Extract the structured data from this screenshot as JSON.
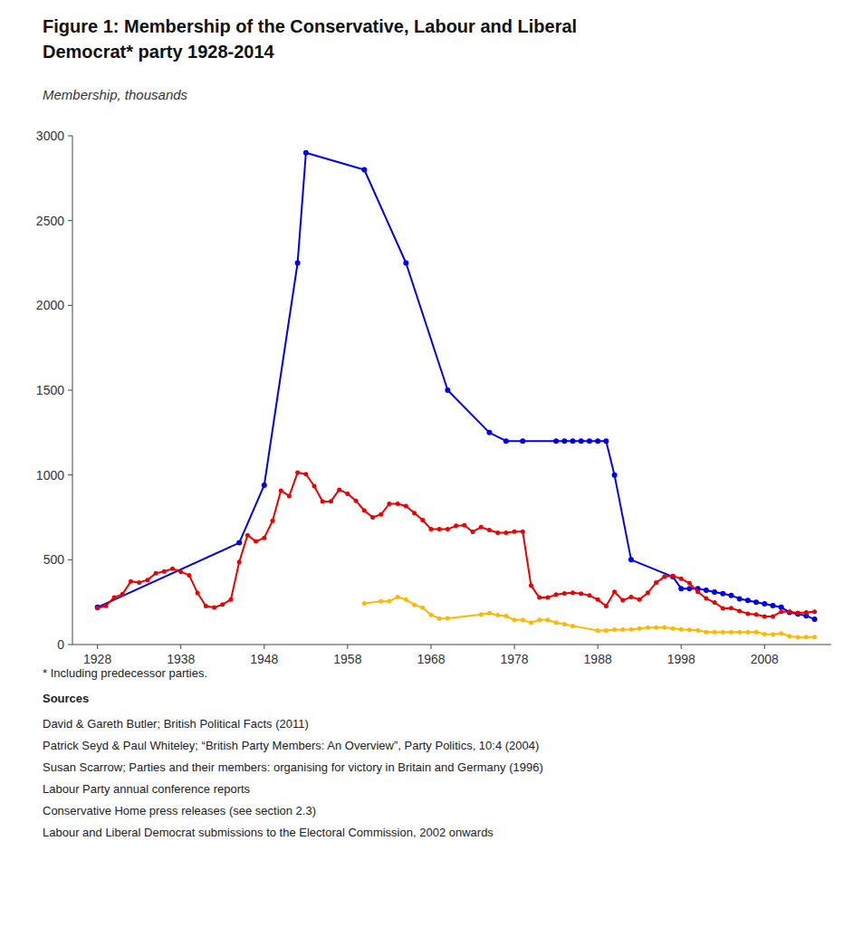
{
  "chart_data": {
    "type": "line",
    "title": [
      "Figure 1: Membership of the Conservative, Labour and Liberal",
      "Democrat* party 1928-2014"
    ],
    "subtitle": "Membership, thousands",
    "annotations": [
      "* Including predecessor parties.",
      "Sources",
      "David & Gareth Butler; British Political Facts (2011)",
      "Patrick Seyd & Paul Whiteley; “British Party Members: An Overview”, Party Politics, 10:4 (2004)",
      "Susan Scarrow; Parties and their members: organising for victory in Britain and Germany (1996)",
      "Labour Party annual conference reports",
      "Conservative Home press releases (see section 2.3)",
      "Labour and Liberal Democrat submissions to the Electoral Commission, 2002 onwards"
    ],
    "marker": "circle",
    "grid": false,
    "series": [
      {
        "color": "#0000EE",
        "x": [
          1928,
          1945,
          1948,
          1952,
          1953,
          1960,
          1965,
          1970,
          1975,
          1977,
          1979,
          1983,
          1984,
          1985,
          1986,
          1987,
          1988,
          1989,
          1990,
          1992,
          1997,
          1998,
          1999,
          2000,
          2001,
          2002,
          2003,
          2004,
          2005,
          2006,
          2007,
          2008,
          2009,
          2010,
          2011,
          2012,
          2013,
          2014
        ],
        "values": [
          220,
          600,
          940,
          2250,
          2900,
          2800,
          2250,
          1500,
          1250,
          1200,
          1200,
          1200,
          1200,
          1200,
          1200,
          1200,
          1200,
          1200,
          1000,
          500,
          400,
          330,
          330,
          330,
          320,
          310,
          300,
          290,
          270,
          260,
          250,
          240,
          230,
          220,
          190,
          180,
          170,
          149
        ]
      },
      {
        "color": "#EE0000",
        "x": [
          1928,
          1929,
          1930,
          1931,
          1932,
          1933,
          1934,
          1935,
          1936,
          1937,
          1938,
          1939,
          1940,
          1941,
          1942,
          1943,
          1944,
          1945,
          1946,
          1947,
          1948,
          1949,
          1950,
          1951,
          1952,
          1953,
          1954,
          1955,
          1956,
          1957,
          1958,
          1959,
          1960,
          1961,
          1962,
          1963,
          1964,
          1965,
          1966,
          1967,
          1968,
          1969,
          1970,
          1971,
          1972,
          1973,
          1974,
          1975,
          1976,
          1977,
          1978,
          1979,
          1980,
          1981,
          1982,
          1983,
          1984,
          1985,
          1986,
          1987,
          1988,
          1989,
          1990,
          1991,
          1992,
          1993,
          1994,
          1995,
          1996,
          1997,
          1998,
          1999,
          2000,
          2001,
          2002,
          2003,
          2004,
          2005,
          2006,
          2007,
          2008,
          2009,
          2010,
          2011,
          2012,
          2013,
          2014
        ],
        "values": [
          215,
          228,
          278,
          297,
          372,
          366,
          381,
          420,
          431,
          447,
          429,
          409,
          304,
          227,
          219,
          236,
          266,
          487,
          645,
          608,
          629,
          730,
          908,
          876,
          1014,
          1005,
          934,
          843,
          845,
          913,
          889,
          848,
          790,
          750,
          767,
          830,
          830,
          817,
          776,
          734,
          680,
          680,
          680,
          700,
          703,
          665,
          692,
          675,
          659,
          659,
          666,
          666,
          348,
          277,
          277,
          295,
          301,
          305,
          300,
          289,
          265,
          227,
          311,
          261,
          280,
          266,
          305,
          365,
          400,
          405,
          388,
          361,
          311,
          272,
          248,
          214,
          215,
          198,
          182,
          177,
          166,
          166,
          194,
          193,
          187,
          190,
          193
        ]
      },
      {
        "color": "#FFB800",
        "x": [
          1960,
          1962,
          1963,
          1964,
          1965,
          1966,
          1967,
          1968,
          1969,
          1970,
          1974,
          1975,
          1976,
          1977,
          1978,
          1979,
          1980,
          1981,
          1982,
          1983,
          1984,
          1985,
          1988,
          1989,
          1990,
          1991,
          1992,
          1993,
          1994,
          1995,
          1996,
          1997,
          1998,
          1999,
          2000,
          2001,
          2002,
          2003,
          2004,
          2005,
          2006,
          2007,
          2008,
          2009,
          2010,
          2011,
          2012,
          2013,
          2014
        ],
        "values": [
          243,
          255,
          256,
          280,
          265,
          234,
          218,
          175,
          154,
          155,
          177,
          185,
          174,
          168,
          145,
          145,
          130,
          145,
          145,
          130,
          120,
          110,
          83,
          83,
          88,
          88,
          90,
          95,
          100,
          100,
          101,
          95,
          90,
          87,
          84,
          73,
          73,
          73,
          73,
          73,
          73,
          73,
          61,
          60,
          65,
          49,
          43,
          44,
          44
        ]
      }
    ],
    "xlim": [
      1925,
      2016
    ],
    "xticks": [
      1928,
      1938,
      1948,
      1958,
      1968,
      1978,
      1988,
      1998,
      2008
    ],
    "ylim": [
      0,
      3000
    ],
    "yticks": [
      0,
      500,
      1000,
      1500,
      2000,
      2500,
      3000
    ]
  }
}
